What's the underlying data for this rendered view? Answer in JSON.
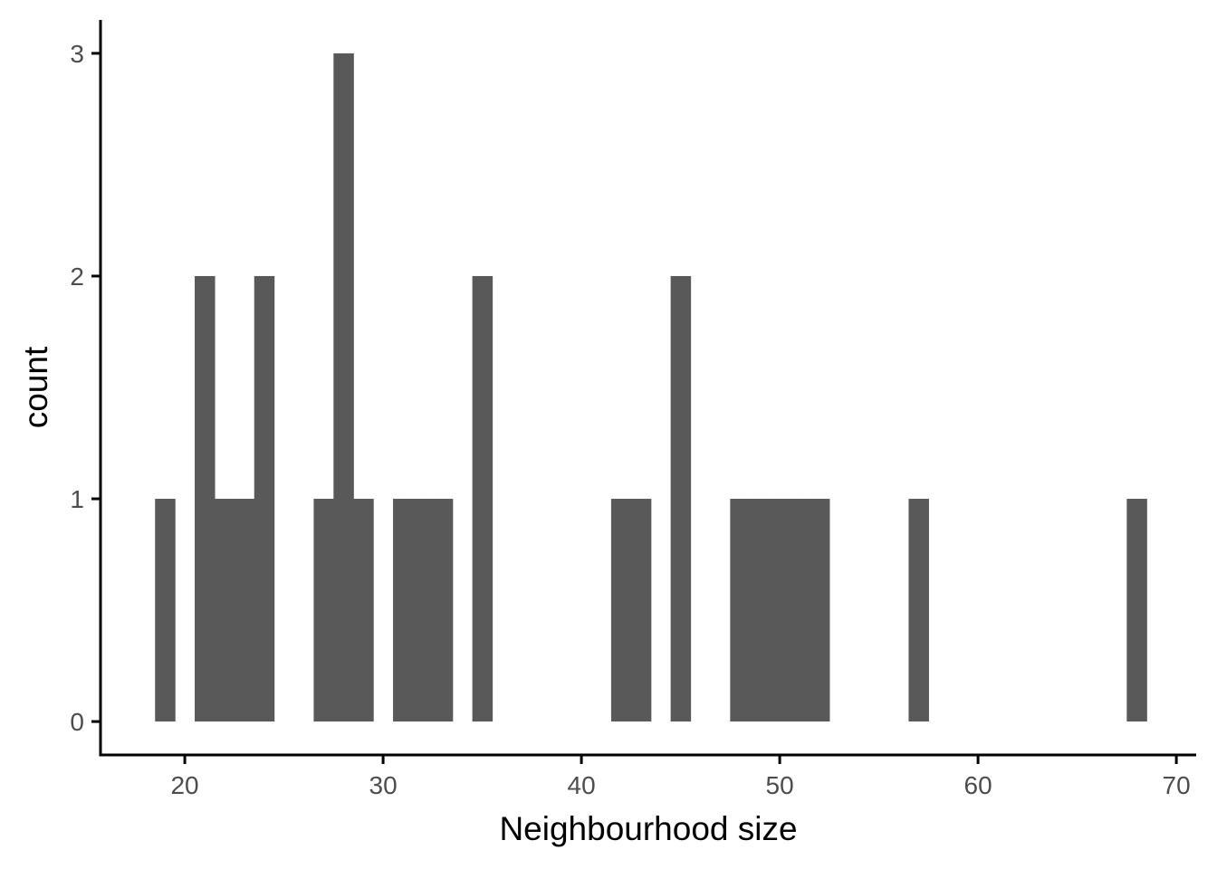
{
  "chart_data": {
    "type": "bar",
    "subtype": "histogram",
    "title": "",
    "xlabel": "Neighbourhood size",
    "ylabel": "count",
    "xlim": [
      15.75,
      71
    ],
    "ylim": [
      -0.15,
      3.15
    ],
    "xticks": [
      20,
      30,
      40,
      50,
      60,
      70
    ],
    "yticks": [
      0,
      1,
      2,
      3
    ],
    "bin_width": 1,
    "bins": [
      {
        "x": 19,
        "count": 1
      },
      {
        "x": 21,
        "count": 2
      },
      {
        "x": 22,
        "count": 1
      },
      {
        "x": 23,
        "count": 1
      },
      {
        "x": 24,
        "count": 2
      },
      {
        "x": 27,
        "count": 1
      },
      {
        "x": 28,
        "count": 3
      },
      {
        "x": 29,
        "count": 1
      },
      {
        "x": 31,
        "count": 1
      },
      {
        "x": 32,
        "count": 1
      },
      {
        "x": 33,
        "count": 1
      },
      {
        "x": 35,
        "count": 2
      },
      {
        "x": 42,
        "count": 1
      },
      {
        "x": 43,
        "count": 1
      },
      {
        "x": 45,
        "count": 2
      },
      {
        "x": 48,
        "count": 1
      },
      {
        "x": 49,
        "count": 1
      },
      {
        "x": 50,
        "count": 1
      },
      {
        "x": 51,
        "count": 1
      },
      {
        "x": 52,
        "count": 1
      },
      {
        "x": 57,
        "count": 1
      },
      {
        "x": 68,
        "count": 1
      }
    ],
    "bar_color": "#595959",
    "axis_color": "#000000",
    "tick_label_color": "#4d4d4d",
    "grid": false,
    "legend": "none"
  }
}
